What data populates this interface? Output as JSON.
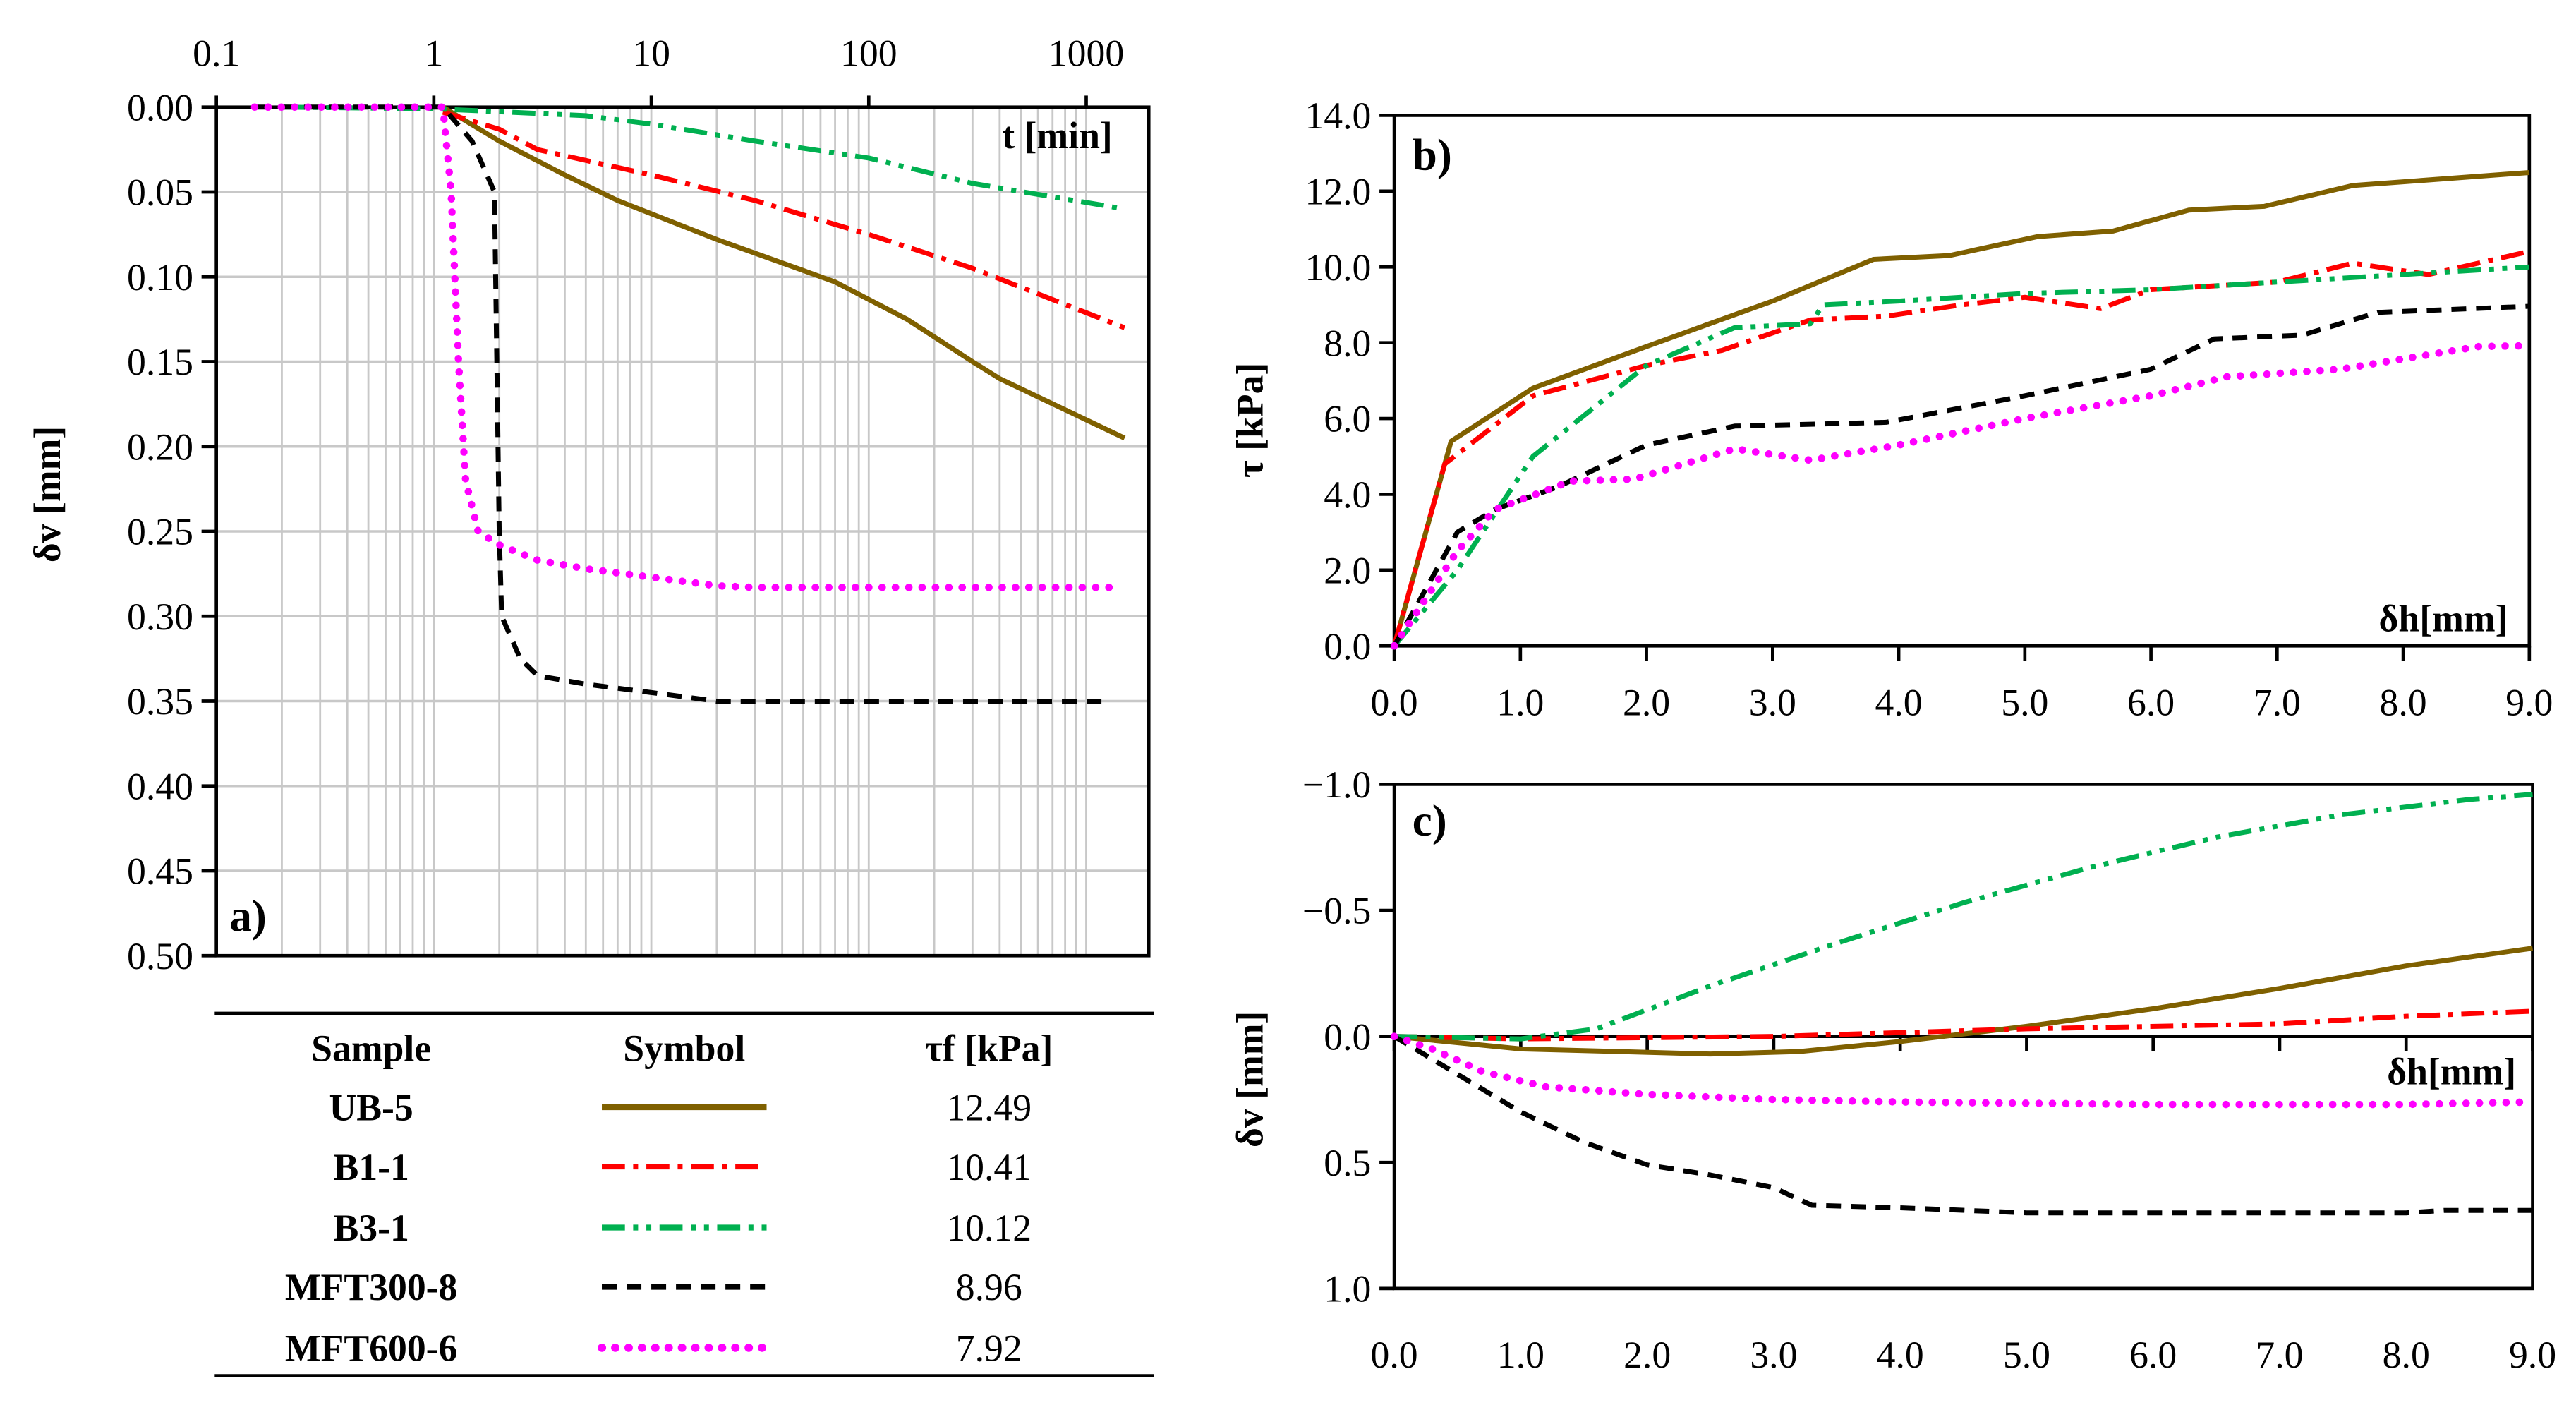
{
  "colors": {
    "UB-5": "#7f6000",
    "B1-1": "#ff0000",
    "B3-1": "#00b050",
    "MFT300-8": "#000000",
    "MFT600-6": "#ff00ff"
  },
  "legend_table": {
    "headers": [
      "Sample",
      "Symbol",
      "τf [kPa]"
    ],
    "rows": [
      {
        "sample": "UB-5",
        "tau_f": "12.49"
      },
      {
        "sample": "B1-1",
        "tau_f": "10.41"
      },
      {
        "sample": "B3-1",
        "tau_f": "10.12"
      },
      {
        "sample": "MFT300-8",
        "tau_f": "8.96"
      },
      {
        "sample": "MFT600-6",
        "tau_f": "7.92"
      }
    ]
  },
  "chart_data": [
    {
      "panel": "a)",
      "type": "line",
      "xscale": "log",
      "xlabel": "t [min]",
      "ylabel": "δv [mm]",
      "xlim": [
        0.1,
        1940
      ],
      "ylim": [
        0,
        0.5
      ],
      "y_inverted": true,
      "grid": true,
      "xticks": [
        "0.1",
        "1",
        "10",
        "100",
        "1000"
      ],
      "yticks": [
        "0.00",
        "0.05",
        "0.10",
        "0.15",
        "0.20",
        "0.25",
        "0.30",
        "0.35",
        "0.40",
        "0.45",
        "0.50"
      ],
      "series": [
        {
          "name": "UB-5",
          "x": [
            1.1,
            2,
            4,
            7,
            20,
            70,
            150,
            300,
            400,
            1500
          ],
          "y": [
            0,
            0.02,
            0.04,
            0.055,
            0.078,
            0.103,
            0.125,
            0.15,
            0.16,
            0.195
          ]
        },
        {
          "name": "B1-1",
          "x": [
            1.1,
            2,
            3,
            10,
            30,
            100,
            300,
            1500
          ],
          "y": [
            0.003,
            0.013,
            0.025,
            0.04,
            0.055,
            0.075,
            0.095,
            0.13
          ]
        },
        {
          "name": "B3-1",
          "x": [
            0.2,
            1,
            5,
            10,
            30,
            100,
            300,
            1500
          ],
          "y": [
            0,
            0.001,
            0.005,
            0.01,
            0.02,
            0.03,
            0.045,
            0.06
          ]
        },
        {
          "name": "MFT300-8",
          "x": [
            0.15,
            1.1,
            1.5,
            1.9,
            2,
            2.05,
            2.5,
            3,
            5,
            10,
            20,
            1300
          ],
          "y": [
            0,
            0,
            0.02,
            0.05,
            0.25,
            0.3,
            0.325,
            0.335,
            0.34,
            0.345,
            0.35,
            0.35
          ]
        },
        {
          "name": "MFT600-6",
          "x": [
            0.15,
            1.1,
            1.2,
            1.3,
            1.4,
            1.6,
            2,
            3,
            5,
            10,
            20,
            30,
            1300
          ],
          "y": [
            0,
            0,
            0.05,
            0.15,
            0.22,
            0.25,
            0.258,
            0.267,
            0.272,
            0.277,
            0.282,
            0.283,
            0.283
          ]
        }
      ]
    },
    {
      "panel": "b)",
      "type": "line",
      "xlabel": "δh[mm]",
      "ylabel": "τ [kPa]",
      "xlim": [
        0,
        9
      ],
      "ylim": [
        0,
        14
      ],
      "grid": false,
      "xticks": [
        "0.0",
        "1.0",
        "2.0",
        "3.0",
        "4.0",
        "5.0",
        "6.0",
        "7.0",
        "8.0",
        "9.0"
      ],
      "yticks": [
        "0.0",
        "2.0",
        "4.0",
        "6.0",
        "8.0",
        "10.0",
        "12.0",
        "14.0"
      ],
      "series": [
        {
          "name": "UB-5",
          "x": [
            0,
            0.45,
            1.1,
            2,
            3,
            3.8,
            4.4,
            5.1,
            5.7,
            6.3,
            6.9,
            7.6,
            9
          ],
          "y": [
            0,
            5.4,
            6.8,
            7.9,
            9.1,
            10.2,
            10.3,
            10.8,
            10.95,
            11.5,
            11.6,
            12.15,
            12.49
          ]
        },
        {
          "name": "B1-1",
          "x": [
            0,
            0.4,
            1.1,
            2,
            2.6,
            3.3,
            3.9,
            4.5,
            5,
            5.6,
            6,
            7,
            7.6,
            8.2,
            9
          ],
          "y": [
            0,
            4.8,
            6.6,
            7.4,
            7.8,
            8.6,
            8.7,
            9.0,
            9.2,
            8.9,
            9.4,
            9.6,
            10.1,
            9.8,
            10.41
          ]
        },
        {
          "name": "B3-1",
          "x": [
            0,
            0.5,
            1.1,
            2,
            2.7,
            3.3,
            3.4,
            4,
            5,
            6,
            7,
            8,
            9
          ],
          "y": [
            0,
            2,
            5,
            7.4,
            8.4,
            8.5,
            9.0,
            9.1,
            9.3,
            9.4,
            9.6,
            9.8,
            10.0
          ]
        },
        {
          "name": "MFT300-8",
          "x": [
            0,
            0.5,
            0.8,
            1.3,
            2,
            2.7,
            3.9,
            5,
            6,
            6.5,
            7.2,
            7.8,
            9
          ],
          "y": [
            0,
            3,
            3.6,
            4.2,
            5.3,
            5.8,
            5.9,
            6.6,
            7.3,
            8.1,
            8.2,
            8.8,
            8.96
          ]
        },
        {
          "name": "MFT600-6",
          "x": [
            0,
            0.5,
            0.8,
            1.4,
            1.9,
            2.7,
            3.3,
            4,
            5,
            6,
            6.6,
            7.5,
            8.6,
            9
          ],
          "y": [
            0,
            2.5,
            3.6,
            4.35,
            4.4,
            5.2,
            4.9,
            5.3,
            6.0,
            6.6,
            7.1,
            7.3,
            7.9,
            7.92
          ]
        }
      ]
    },
    {
      "panel": "c)",
      "type": "line",
      "xlabel": "δh[mm]",
      "ylabel": "δv [mm]",
      "xlim": [
        0,
        9
      ],
      "ylim": [
        -1.0,
        1.0
      ],
      "y_inverted": true,
      "grid": false,
      "xticks": [
        "0.0",
        "1.0",
        "2.0",
        "3.0",
        "4.0",
        "5.0",
        "6.0",
        "7.0",
        "8.0",
        "9.0"
      ],
      "yticks": [
        "−1.0",
        "−0.5",
        "0.0",
        "0.5",
        "1.0"
      ],
      "series": [
        {
          "name": "UB-5",
          "x": [
            0,
            1,
            2.5,
            3.2,
            4,
            5,
            6,
            7,
            8,
            9
          ],
          "y": [
            0,
            0.05,
            0.07,
            0.06,
            0.02,
            -0.04,
            -0.11,
            -0.19,
            -0.28,
            -0.35
          ]
        },
        {
          "name": "B1-1",
          "x": [
            0,
            1,
            3,
            5,
            7,
            8,
            9
          ],
          "y": [
            0,
            0.01,
            0,
            -0.03,
            -0.05,
            -0.08,
            -0.1
          ]
        },
        {
          "name": "B3-1",
          "x": [
            0,
            1,
            1.6,
            2.5,
            3.5,
            4.5,
            5.5,
            6.5,
            7.5,
            8.5,
            9
          ],
          "y": [
            0,
            0.01,
            -0.03,
            -0.2,
            -0.37,
            -0.53,
            -0.67,
            -0.79,
            -0.88,
            -0.94,
            -0.96
          ]
        },
        {
          "name": "MFT300-8",
          "x": [
            0,
            0.5,
            1,
            1.5,
            2,
            2.5,
            3,
            3.3,
            4,
            5,
            6,
            8,
            8.3,
            9
          ],
          "y": [
            0,
            0.15,
            0.3,
            0.42,
            0.51,
            0.55,
            0.6,
            0.67,
            0.68,
            0.7,
            0.7,
            0.7,
            0.69,
            0.69
          ]
        },
        {
          "name": "MFT600-6",
          "x": [
            0,
            0.3,
            0.7,
            1.2,
            2,
            3,
            4,
            6,
            8,
            9
          ],
          "y": [
            0,
            0.05,
            0.14,
            0.2,
            0.23,
            0.25,
            0.26,
            0.27,
            0.27,
            0.26
          ]
        }
      ]
    }
  ]
}
